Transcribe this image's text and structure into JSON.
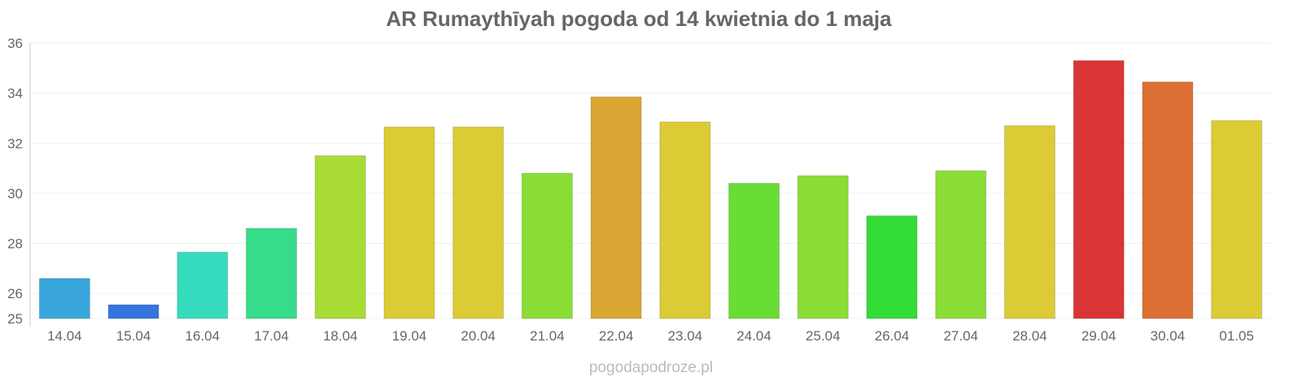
{
  "chart_data": {
    "type": "bar",
    "title": "AR Rumaythīyah pogoda od 14 kwietnia do 1 maja",
    "xlabel": "",
    "ylabel": "",
    "ylim": [
      25,
      36
    ],
    "yticks": [
      25,
      26,
      28,
      30,
      32,
      34,
      36
    ],
    "grid": true,
    "categories": [
      "14.04",
      "15.04",
      "16.04",
      "17.04",
      "18.04",
      "19.04",
      "20.04",
      "21.04",
      "22.04",
      "23.04",
      "24.04",
      "25.04",
      "26.04",
      "27.04",
      "28.04",
      "29.04",
      "30.04",
      "01.05"
    ],
    "values": [
      26.6,
      25.55,
      27.65,
      28.6,
      31.5,
      32.65,
      32.65,
      30.8,
      33.85,
      32.85,
      30.4,
      30.7,
      29.1,
      30.9,
      32.7,
      35.3,
      34.45,
      32.9
    ],
    "colors": [
      "#38a6dc",
      "#3375dd",
      "#36dbbe",
      "#36dc8a",
      "#a9dc34",
      "#dccb34",
      "#dccb34",
      "#8adc36",
      "#dba634",
      "#dccb34",
      "#6adc36",
      "#8adc36",
      "#33dc36",
      "#8adc36",
      "#dccb34",
      "#db3434",
      "#dc7034",
      "#dccb34"
    ]
  },
  "credit": "pogodapodroze.pl"
}
